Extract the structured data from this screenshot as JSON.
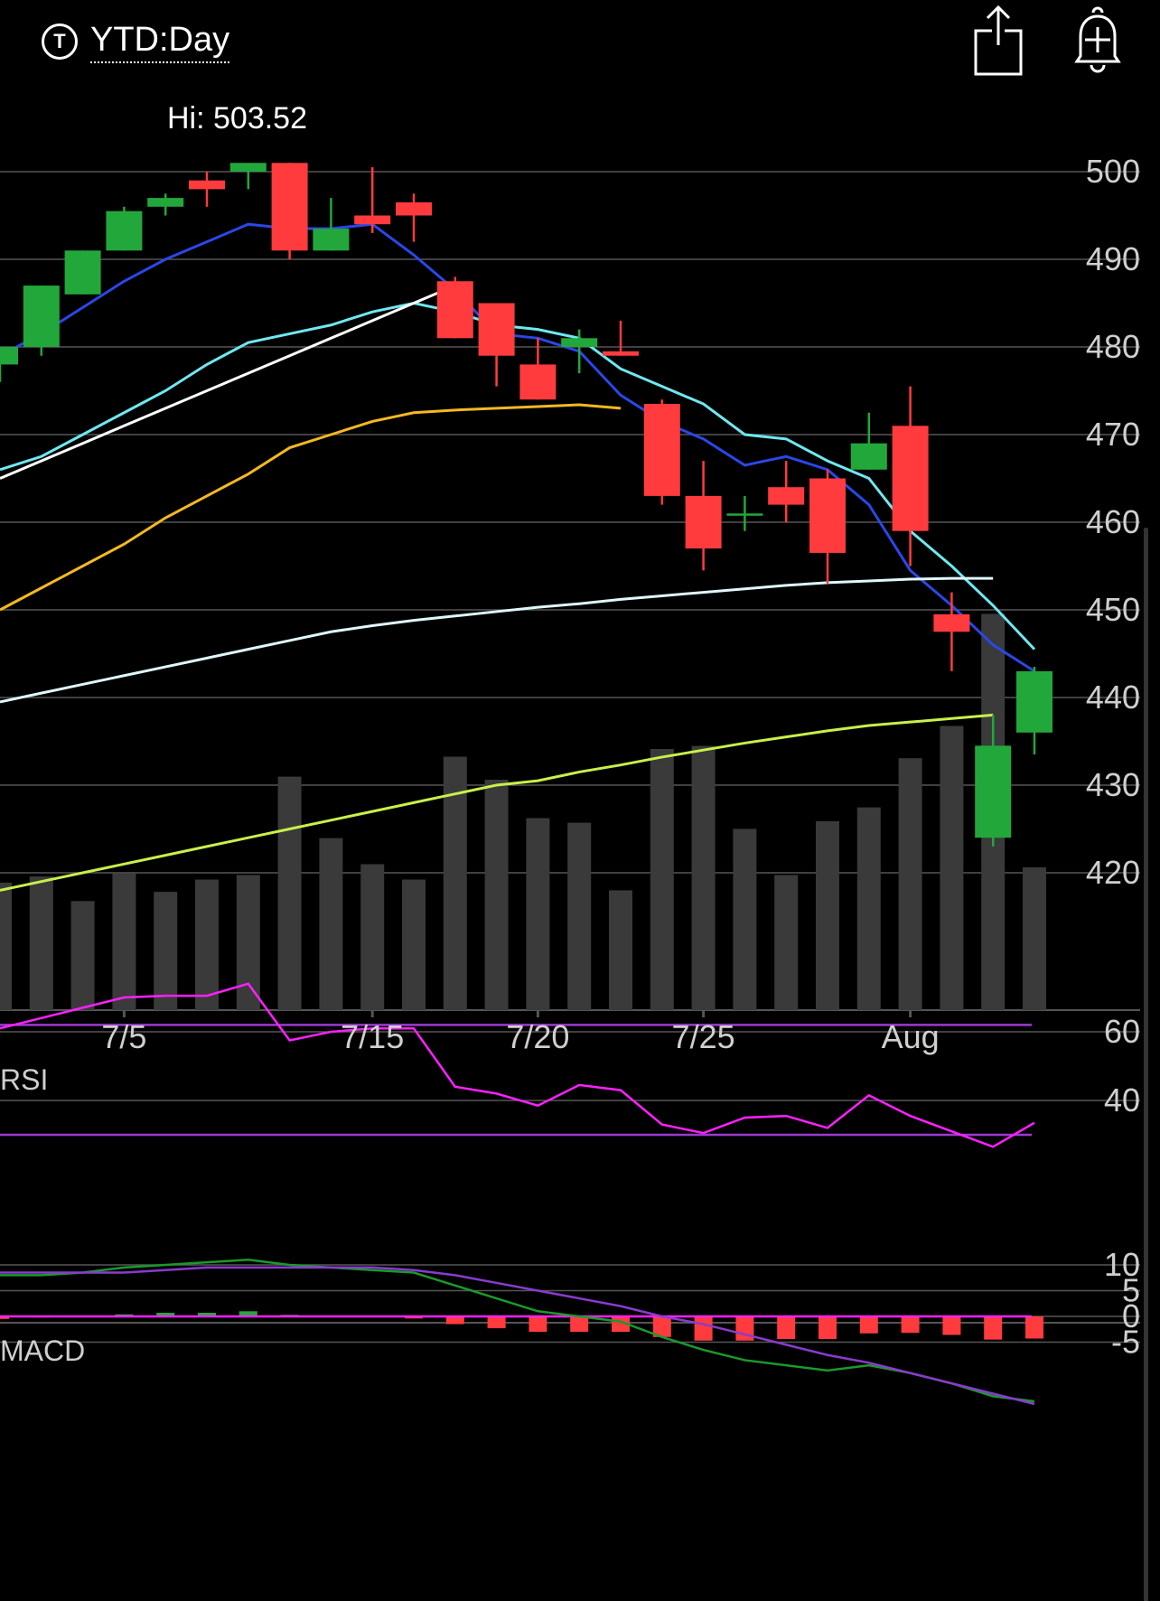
{
  "header": {
    "icon_letter": "T",
    "period_label": "YTD:Day",
    "share_icon": "share-icon",
    "alert_icon": "add-alert-bell-icon"
  },
  "colors": {
    "background": "#000000",
    "up": "#22a83a",
    "down": "#ff3b3e",
    "volume": "#3a3a3a",
    "grid": "#555555",
    "axis_text": "#cfcfcf",
    "ma_blue": "#2a47e8",
    "ma_cyan": "#6fe8f0",
    "ma_white": "#ffffff",
    "ma_orange": "#f5b820",
    "ma_light": "#dff7fb",
    "ma_lime": "#c8f04a",
    "rsi_line": "#ff20ff",
    "rsi_band": "#9a3ad0",
    "macd_line": "#1a9a2a",
    "signal_line": "#8a3ad0",
    "macd_zero": "#ff20ff"
  },
  "chart_data": [
    {
      "type": "candlestick",
      "title": "",
      "hi_label": "Hi: 503.52",
      "x_tick_labels": [
        {
          "label": "7/5",
          "index": 3
        },
        {
          "label": "7/15",
          "index": 9
        },
        {
          "label": "7/20",
          "index": 13
        },
        {
          "label": "7/25",
          "index": 17
        },
        {
          "label": "Aug",
          "index": 22
        }
      ],
      "ylim": [
        407,
        506
      ],
      "y_ticks": [
        420,
        430,
        440,
        450,
        460,
        470,
        480,
        490,
        500
      ],
      "candles": [
        {
          "o": 478,
          "h": 480,
          "l": 476,
          "c": 480
        },
        {
          "o": 480,
          "h": 487,
          "l": 479,
          "c": 487
        },
        {
          "o": 486,
          "h": 491,
          "l": 486,
          "c": 491
        },
        {
          "o": 491,
          "h": 496,
          "l": 491,
          "c": 495.5
        },
        {
          "o": 496,
          "h": 497.5,
          "l": 495,
          "c": 497
        },
        {
          "o": 499,
          "h": 500,
          "l": 496,
          "c": 498
        },
        {
          "o": 500,
          "h": 501,
          "l": 498,
          "c": 501
        },
        {
          "o": 501,
          "h": 501,
          "l": 490,
          "c": 491
        },
        {
          "o": 491,
          "h": 497,
          "l": 491,
          "c": 493.5
        },
        {
          "o": 495,
          "h": 500.5,
          "l": 493,
          "c": 494
        },
        {
          "o": 496.5,
          "h": 497.5,
          "l": 492,
          "c": 495
        },
        {
          "o": 487.5,
          "h": 488,
          "l": 481,
          "c": 481
        },
        {
          "o": 485,
          "h": 485,
          "l": 475.5,
          "c": 479
        },
        {
          "o": 478,
          "h": 481,
          "l": 474,
          "c": 474
        },
        {
          "o": 480,
          "h": 482,
          "l": 477,
          "c": 481
        },
        {
          "o": 479.5,
          "h": 483,
          "l": 479,
          "c": 479
        },
        {
          "o": 473.5,
          "h": 474,
          "l": 462,
          "c": 463
        },
        {
          "o": 463,
          "h": 467,
          "l": 454.5,
          "c": 457
        },
        {
          "o": 461,
          "h": 463,
          "l": 459,
          "c": 461
        },
        {
          "o": 464,
          "h": 467,
          "l": 460,
          "c": 462
        },
        {
          "o": 465,
          "h": 466,
          "l": 453,
          "c": 456.5
        },
        {
          "o": 466,
          "h": 472.5,
          "l": 466,
          "c": 469
        },
        {
          "o": 471,
          "h": 475.5,
          "l": 455,
          "c": 459
        },
        {
          "o": 449.5,
          "h": 452,
          "l": 443,
          "c": 447.5
        },
        {
          "o": 424,
          "h": 438,
          "l": 423,
          "c": 434.5
        },
        {
          "o": 436,
          "h": 443.5,
          "l": 433.5,
          "c": 443
        }
      ],
      "volume": [
        0.83,
        0.87,
        0.71,
        0.89,
        0.77,
        0.85,
        0.88,
        1.52,
        1.12,
        0.95,
        0.85,
        1.65,
        1.5,
        1.25,
        1.22,
        0.78,
        1.7,
        1.72,
        1.18,
        0.88,
        1.23,
        1.32,
        1.64,
        1.85,
        2.58,
        0.93
      ],
      "series": [
        {
          "color_key": "ma_blue",
          "values": [
            479,
            481.5,
            484.5,
            487.5,
            490,
            492,
            494,
            493.5,
            493.5,
            494,
            490.5,
            486.5,
            481.5,
            481,
            479.5,
            474.5,
            471.5,
            469.5,
            466.5,
            467.5,
            466,
            462,
            454.5,
            450.5,
            446,
            443
          ]
        },
        {
          "color_key": "ma_cyan",
          "values": [
            466,
            467.5,
            470,
            472.5,
            475,
            478,
            480.5,
            481.5,
            482.5,
            484,
            485,
            484,
            482.5,
            482,
            481,
            477.5,
            475.5,
            473.5,
            470,
            469.5,
            467,
            465,
            459,
            455,
            450.5,
            445.5
          ]
        },
        {
          "color_key": "ma_white",
          "values": [
            465,
            467,
            469,
            471,
            473,
            475,
            477,
            479,
            481,
            483,
            485,
            487
          ]
        },
        {
          "color_key": "ma_orange",
          "values": [
            450,
            452.5,
            455,
            457.5,
            460.5,
            463,
            465.5,
            468.5,
            470,
            471.5,
            472.5,
            472.8,
            473,
            473.2,
            473.4,
            473
          ]
        },
        {
          "color_key": "ma_light",
          "values": [
            439.5,
            440.5,
            441.5,
            442.5,
            443.5,
            444.5,
            445.5,
            446.5,
            447.5,
            448.2,
            448.8,
            449.3,
            449.8,
            450.3,
            450.7,
            451.2,
            451.6,
            452,
            452.4,
            452.8,
            453.1,
            453.3,
            453.5,
            453.6,
            453.6
          ]
        },
        {
          "color_key": "ma_lime",
          "values": [
            418,
            419,
            420,
            421,
            422,
            423,
            424,
            425,
            426,
            427,
            428,
            429,
            430,
            430.5,
            431.5,
            432.3,
            433.2,
            434,
            434.8,
            435.5,
            436.2,
            436.8,
            437.2,
            437.6,
            438
          ]
        }
      ]
    },
    {
      "type": "line",
      "title": "RSI",
      "y_ticks": [
        40,
        60
      ],
      "ylim": [
        26,
        76
      ],
      "bands": [
        62,
        30
      ],
      "values": [
        61,
        64,
        67,
        70,
        70.5,
        70.5,
        74,
        57.5,
        60,
        61,
        61,
        44,
        42,
        38.5,
        44.5,
        43,
        33,
        30.5,
        35,
        35.5,
        32,
        41.5,
        35.5,
        31,
        26.5,
        33.5
      ]
    },
    {
      "type": "bar",
      "title": "MACD",
      "y_ticks": [
        10,
        5,
        0,
        -5
      ],
      "ylim": [
        -11,
        12
      ],
      "macd": [
        8,
        8,
        8.5,
        9.5,
        10,
        10.5,
        11,
        10,
        9.5,
        9,
        8.5,
        6,
        3.5,
        1,
        0,
        -1,
        -4,
        -6.5,
        -8.5,
        -9.5,
        -10.5,
        -9.5,
        -11,
        -13,
        -15.5,
        -16.5
      ],
      "signal": [
        8.5,
        8.5,
        8.5,
        8.5,
        9,
        9.5,
        9.5,
        9.5,
        9.5,
        9.5,
        9,
        8,
        6.5,
        5,
        3.5,
        2,
        0,
        -1.5,
        -3.5,
        -5.5,
        -7.5,
        -9,
        -11,
        -13,
        -15,
        -17
      ],
      "histogram": [
        -0.5,
        -0.2,
        0,
        0.4,
        0.7,
        0.7,
        1.0,
        0.3,
        0,
        0,
        -0.4,
        -1.5,
        -2.3,
        -3.0,
        -3.0,
        -3.0,
        -4.0,
        -4.7,
        -4.7,
        -4.4,
        -4.4,
        -3.3,
        -3.2,
        -3.6,
        -4.5,
        -4.3
      ]
    }
  ]
}
